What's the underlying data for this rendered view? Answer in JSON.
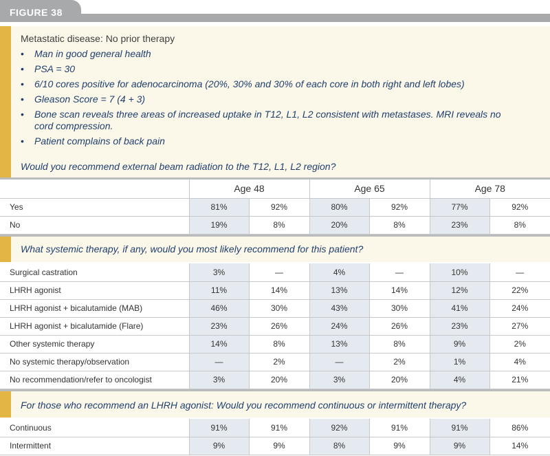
{
  "figure_label": "FIGURE 38",
  "case": {
    "title": "Metastatic disease: No prior therapy",
    "bullets": [
      "Man in good general health",
      "PSA = 30",
      "6/10 cores positive for adenocarcinoma (20%, 30% and 30% of each core in both right and left lobes)",
      "Gleason Score = 7 (4 + 3)",
      "Bone scan reveals three areas of increased uptake in T12, L1, L2 consistent with metastases. MRI reveals no cord compression.",
      "Patient complains of back pain"
    ],
    "bullet_symbol": "•",
    "question1": "Would you recommend external beam radiation to the T12, L1, L2 region?"
  },
  "age_headers": [
    "Age 48",
    "Age 65",
    "Age 78"
  ],
  "table1": [
    {
      "label": "Yes",
      "values": [
        "81%",
        "92%",
        "80%",
        "92%",
        "77%",
        "92%"
      ]
    },
    {
      "label": "No",
      "values": [
        "19%",
        "8%",
        "20%",
        "8%",
        "23%",
        "8%"
      ]
    }
  ],
  "question2": "What systemic therapy, if any, would you most likely recommend for this patient?",
  "table2": [
    {
      "label": "Surgical castration",
      "values": [
        "3%",
        "—",
        "4%",
        "—",
        "10%",
        "—"
      ]
    },
    {
      "label": "LHRH agonist",
      "values": [
        "11%",
        "14%",
        "13%",
        "14%",
        "12%",
        "22%"
      ]
    },
    {
      "label": "LHRH agonist + bicalutamide (MAB)",
      "values": [
        "46%",
        "30%",
        "43%",
        "30%",
        "41%",
        "24%"
      ]
    },
    {
      "label": "LHRH agonist + bicalutamide (Flare)",
      "values": [
        "23%",
        "26%",
        "24%",
        "26%",
        "23%",
        "27%"
      ]
    },
    {
      "label": "Other systemic therapy",
      "values": [
        "14%",
        "8%",
        "13%",
        "8%",
        "9%",
        "2%"
      ]
    },
    {
      "label": "No systemic therapy/observation",
      "values": [
        "—",
        "2%",
        "—",
        "2%",
        "1%",
        "4%"
      ]
    },
    {
      "label": "No recommendation/refer to oncologist",
      "values": [
        "3%",
        "20%",
        "3%",
        "20%",
        "4%",
        "21%"
      ]
    }
  ],
  "question3": "For those who recommend an LHRH agonist: Would you recommend continuous or intermittent therapy?",
  "table3": [
    {
      "label": "Continuous",
      "values": [
        "91%",
        "91%",
        "92%",
        "91%",
        "91%",
        "86%"
      ]
    },
    {
      "label": "Intermittent",
      "values": [
        "9%",
        "9%",
        "8%",
        "9%",
        "9%",
        "14%"
      ]
    }
  ],
  "colors": {
    "tab_gray": "#a7a9ab",
    "gold_bar": "#e2b544",
    "cream_background": "#fbf8ea",
    "question_blue": "#1f3f6e",
    "shaded_cell": "#e5eaf0"
  }
}
